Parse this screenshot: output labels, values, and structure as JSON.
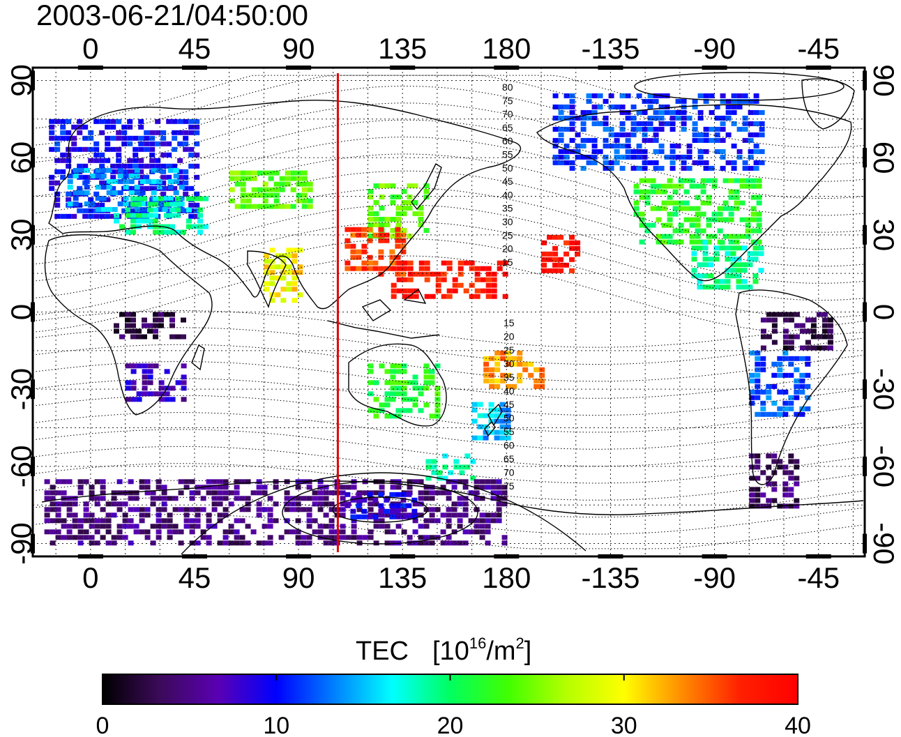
{
  "title": "2003-06-21/04:50:00",
  "map": {
    "lon_ticks_top": [
      "0",
      "45",
      "90",
      "135",
      "180",
      "-135",
      "-90",
      "-45"
    ],
    "lon_ticks_bottom": [
      "0",
      "45",
      "90",
      "135",
      "180",
      "-135",
      "-90",
      "-45"
    ],
    "lat_ticks_left": [
      "90",
      "60",
      "30",
      "0",
      "-30",
      "-60",
      "-90"
    ],
    "lat_ticks_right": [
      "90",
      "60",
      "30",
      "0",
      "-30",
      "-60",
      "-90"
    ],
    "lon_range": [
      -25,
      335
    ],
    "lat_range": [
      -95,
      95
    ],
    "grid": "dotted",
    "marker_line": {
      "lon": 107,
      "color": "#e00000"
    },
    "contour_labels_north": [
      "80",
      "75",
      "70",
      "65",
      "60",
      "55",
      "50",
      "45",
      "40",
      "35",
      "30",
      "25",
      "20",
      "15"
    ],
    "contour_labels_south": [
      "15",
      "20",
      "25",
      "30",
      "35",
      "40",
      "45",
      "50",
      "55",
      "60",
      "65",
      "70",
      "75"
    ]
  },
  "colorbar": {
    "title_main": "TEC",
    "title_units_prefix": "[10",
    "title_units_exp": "16",
    "title_units_mid": "/m",
    "title_units_exp2": "2",
    "title_units_suffix": "]",
    "ticks": [
      "0",
      "10",
      "20",
      "30",
      "40"
    ],
    "range": [
      0,
      40
    ],
    "colors": [
      "#000000",
      "#3c0a5a",
      "#5a00b4",
      "#0000ff",
      "#0080ff",
      "#00ffff",
      "#00ff60",
      "#40ff00",
      "#b4ff00",
      "#ffff00",
      "#ff8c00",
      "#ff2000",
      "#ff0000"
    ]
  },
  "chart_data": {
    "type": "heatmap",
    "title": "2003-06-21/04:50:00",
    "value_label": "TEC [10^16/m^2]",
    "vrange": [
      0,
      40
    ],
    "regions": [
      {
        "lon_min": -18,
        "lon_max": 45,
        "lat_min": 38,
        "lat_max": 75,
        "value": 10
      },
      {
        "lon_min": -10,
        "lon_max": 40,
        "lat_min": 40,
        "lat_max": 56,
        "value": 14
      },
      {
        "lon_min": 10,
        "lon_max": 50,
        "lat_min": 30,
        "lat_max": 45,
        "value": 19
      },
      {
        "lon_min": 60,
        "lon_max": 95,
        "lat_min": 40,
        "lat_max": 55,
        "value": 24
      },
      {
        "lon_min": 120,
        "lon_max": 145,
        "lat_min": 30,
        "lat_max": 50,
        "value": 24
      },
      {
        "lon_min": 110,
        "lon_max": 135,
        "lat_min": 15,
        "lat_max": 33,
        "value": 36
      },
      {
        "lon_min": 75,
        "lon_max": 90,
        "lat_min": 5,
        "lat_max": 25,
        "value": 30
      },
      {
        "lon_min": 130,
        "lon_max": 180,
        "lat_min": 5,
        "lat_max": 20,
        "value": 38
      },
      {
        "lon_min": 195,
        "lon_max": 210,
        "lat_min": 15,
        "lat_max": 30,
        "value": 38
      },
      {
        "lon_min": 170,
        "lon_max": 195,
        "lat_min": -30,
        "lat_max": -15,
        "value": 33
      },
      {
        "lon_min": 120,
        "lon_max": 150,
        "lat_min": -40,
        "lat_max": -20,
        "value": 22
      },
      {
        "lon_min": 165,
        "lon_max": 180,
        "lat_min": -50,
        "lat_max": -35,
        "value": 15
      },
      {
        "lon_min": 145,
        "lon_max": 165,
        "lat_min": -65,
        "lat_max": -55,
        "value": 18
      },
      {
        "lon_min": 15,
        "lon_max": 40,
        "lat_min": -35,
        "lat_max": -20,
        "value": 7
      },
      {
        "lon_min": 10,
        "lon_max": 40,
        "lat_min": -10,
        "lat_max": 0,
        "value": 3
      },
      {
        "lon_min": 200,
        "lon_max": 290,
        "lat_min": 55,
        "lat_max": 85,
        "value": 11
      },
      {
        "lon_min": 235,
        "lon_max": 290,
        "lat_min": 28,
        "lat_max": 52,
        "value": 22
      },
      {
        "lon_min": 260,
        "lon_max": 290,
        "lat_min": 10,
        "lat_max": 28,
        "value": 19
      },
      {
        "lon_min": 290,
        "lon_max": 320,
        "lat_min": -15,
        "lat_max": 0,
        "value": 3
      },
      {
        "lon_min": 285,
        "lon_max": 310,
        "lat_min": -40,
        "lat_max": -15,
        "value": 12
      },
      {
        "lon_min": 285,
        "lon_max": 305,
        "lat_min": -75,
        "lat_max": -55,
        "value": 4
      },
      {
        "lon_min": -20,
        "lon_max": 180,
        "lat_min": -90,
        "lat_max": -65,
        "value": 5
      },
      {
        "lon_min": 110,
        "lon_max": 140,
        "lat_min": -80,
        "lat_max": -70,
        "value": 9
      }
    ]
  }
}
